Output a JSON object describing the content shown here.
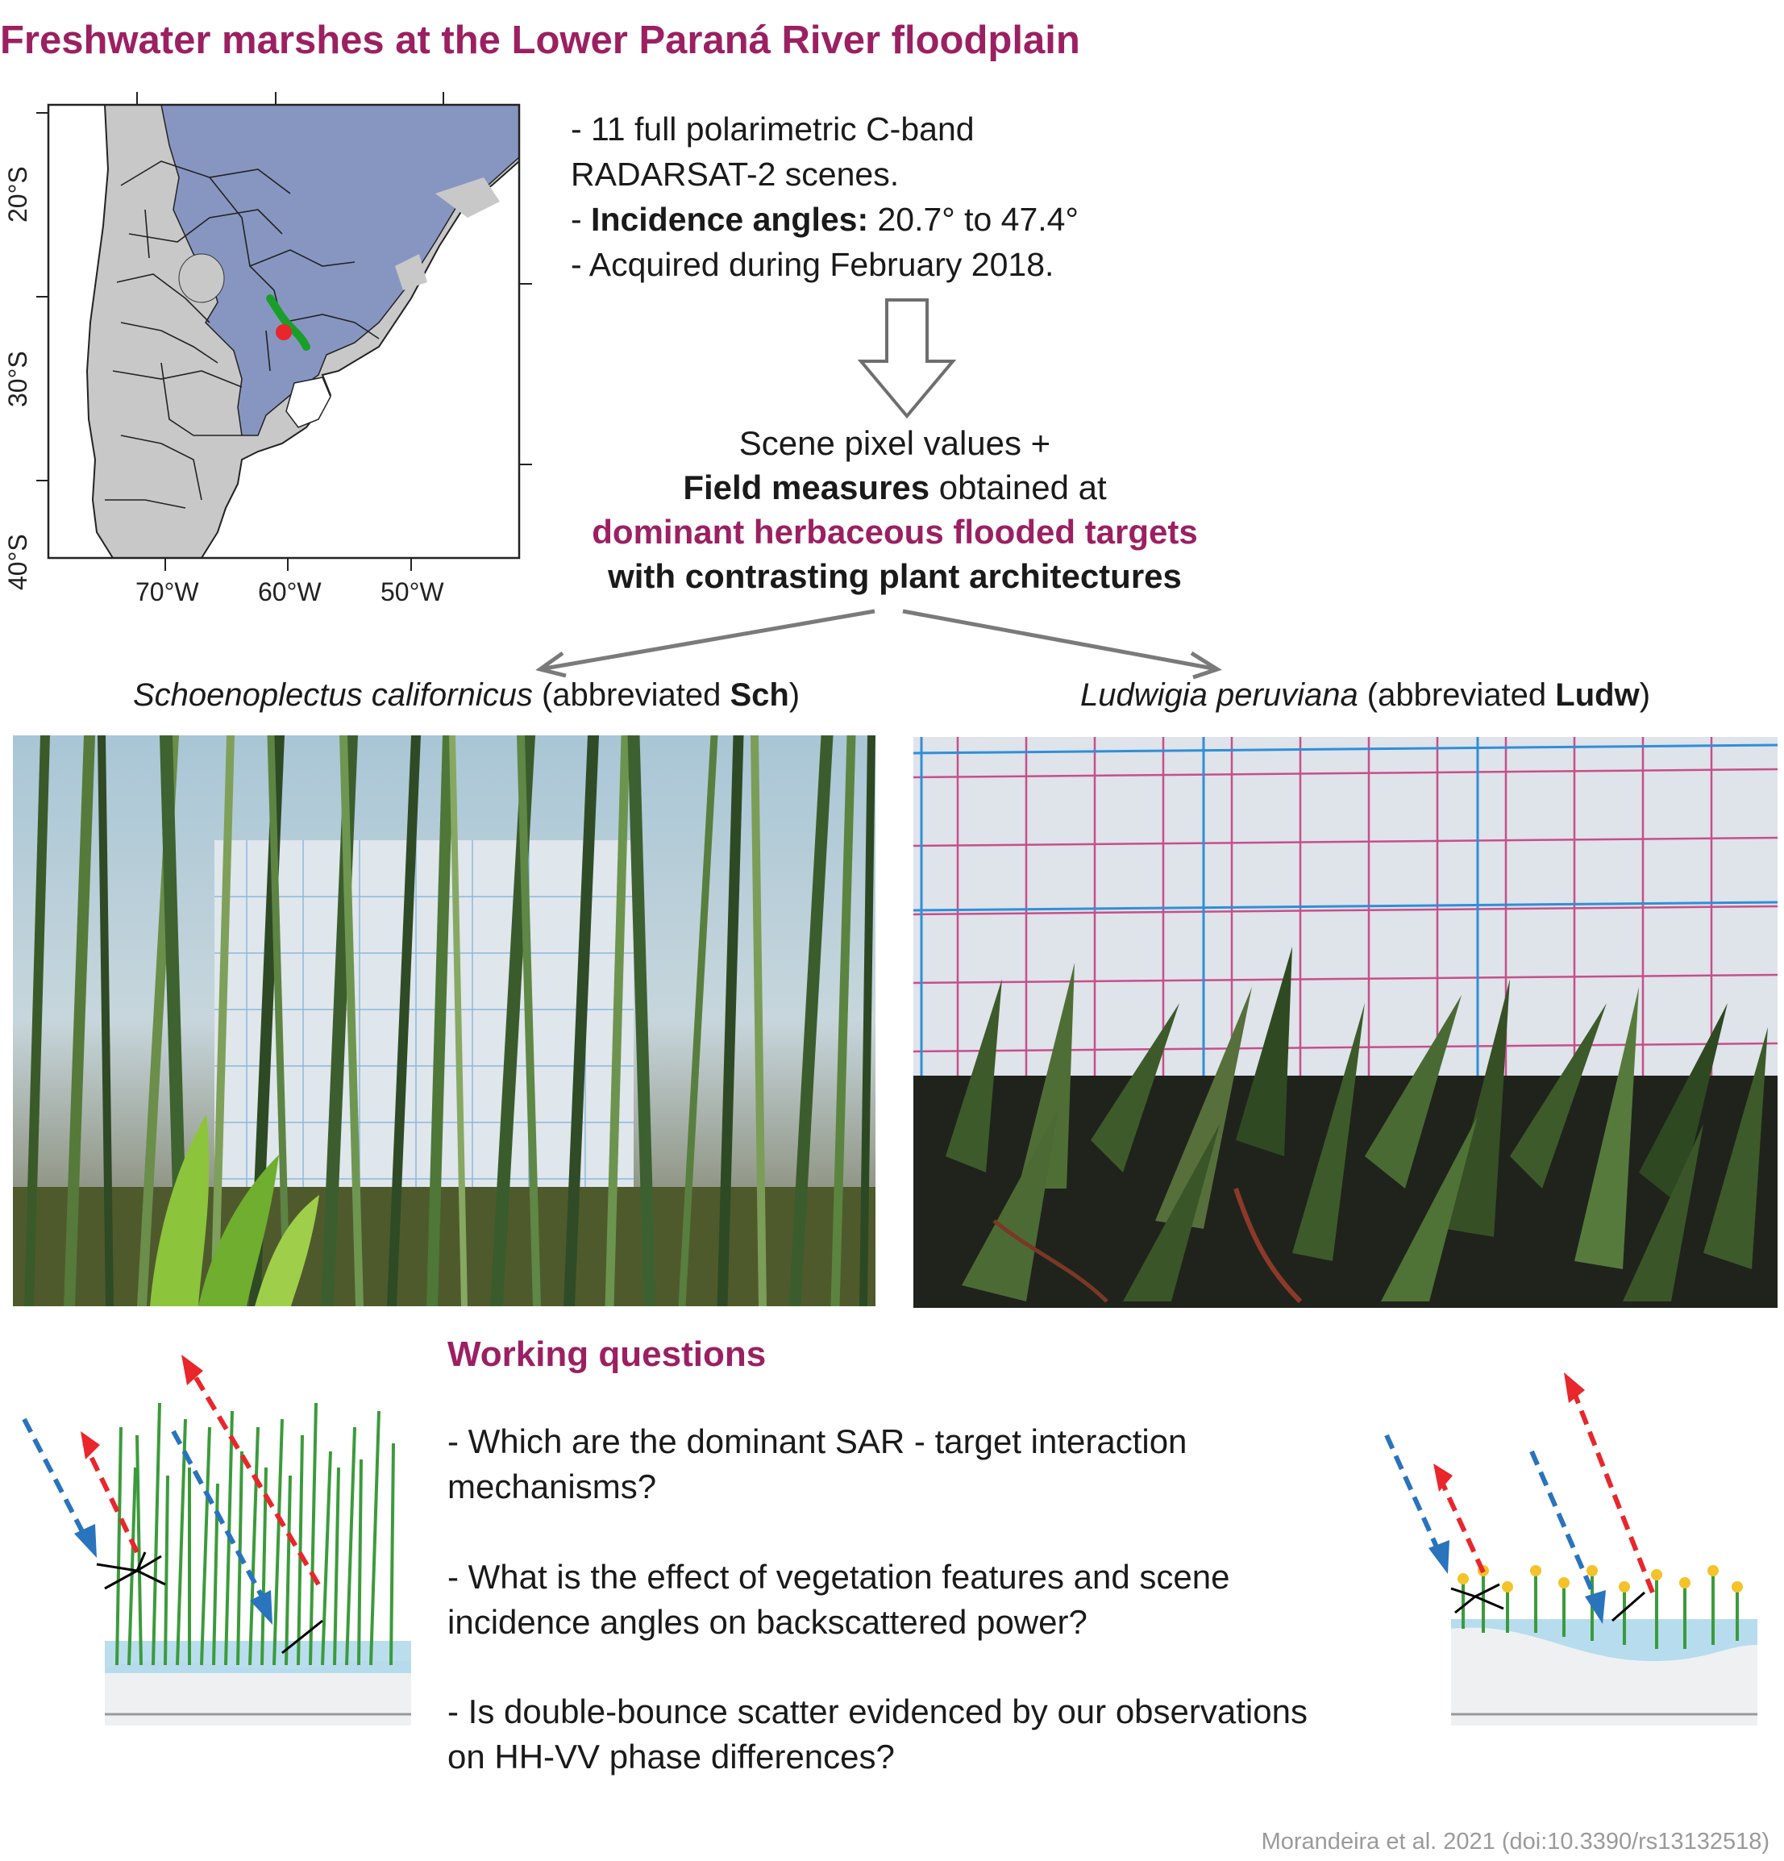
{
  "title": "Freshwater marshes at the Lower Paraná River floodplain",
  "map": {
    "lat_labels": [
      "20°S",
      "30°S",
      "40°S"
    ],
    "lon_labels": [
      "70°W",
      "60°W",
      "50°W"
    ]
  },
  "info": {
    "line1": "- 11 full polarimetric C-band",
    "line2": "RADARSAT-2 scenes.",
    "line3_prefix": "- ",
    "line3_bold": "Incidence angles:",
    "line3_rest": " 20.7° to 47.4°",
    "line4": "- Acquired during February 2018."
  },
  "scene": {
    "line1": "Scene pixel values +",
    "line2_bold": "Field measures",
    "line2_rest": " obtained at",
    "line3": "dominant herbaceous flooded targets",
    "line4": "with contrasting plant architectures"
  },
  "species_left": {
    "name": "Schoenoplectus californicus",
    "mid": " (abbreviated ",
    "abbr": "Sch",
    "end": ")"
  },
  "species_right": {
    "name": "Ludwigia peruviana",
    "mid": " (abbreviated ",
    "abbr": "Ludw",
    "end": ")"
  },
  "questions": {
    "title": "Working questions",
    "q1": "- Which are the dominant SAR - target interaction mechanisms?",
    "q2": "- What is the effect of vegetation features and scene incidence angles on backscattered power?",
    "q3": "- Is double-bounce scatter evidenced by our observations on HH-VV phase differences?"
  },
  "citation": "Morandeira et al. 2021 (doi:10.3390/rs13132518)",
  "colors": {
    "accent": "#9b2062",
    "wetland": "#8796c1",
    "land": "#c8c8c8",
    "incident": "#2a73bd",
    "scatter": "#e8262b",
    "plant": "#3b9b3b"
  }
}
